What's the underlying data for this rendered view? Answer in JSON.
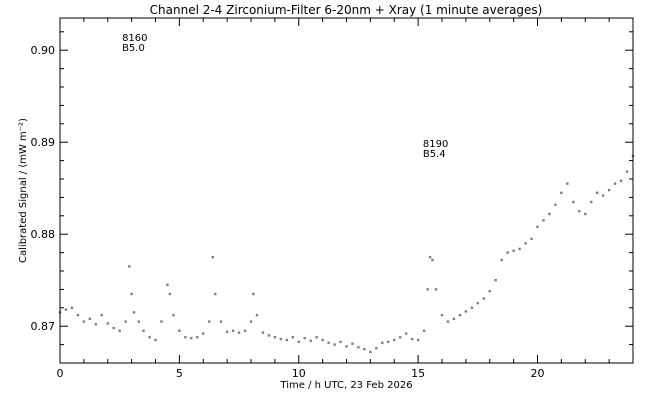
{
  "chart_data": {
    "type": "scatter",
    "title": "Channel 2-4   Zirconium-Filter   6-20nm + Xray   (1 minute averages)",
    "xlabel": "Time / h UTC, 23 Feb 2026",
    "ylabel": "Calibrated Signal / (mW m⁻²)",
    "xlim": [
      0,
      24
    ],
    "ylim": [
      0.866,
      0.9035
    ],
    "x_ticks": [
      0,
      5,
      10,
      15,
      20
    ],
    "x_tick_labels": [
      "0",
      "5",
      "10",
      "15",
      "20"
    ],
    "y_ticks": [
      0.87,
      0.88,
      0.89,
      0.9
    ],
    "y_tick_labels": [
      "0.87",
      "0.88",
      "0.89",
      "0.90"
    ],
    "point_color": "#7f7f7f",
    "annotations": [
      {
        "lines": [
          "8160",
          "B5.0"
        ],
        "x": 2.6,
        "y": 0.901
      },
      {
        "lines": [
          "8190",
          "B5.4"
        ],
        "x": 15.2,
        "y": 0.8895
      }
    ],
    "series": [
      {
        "x": [
          0.0,
          0.25,
          0.5,
          0.75,
          1.0,
          1.25,
          1.5,
          1.75,
          2.0,
          2.25,
          2.5,
          2.75,
          2.9,
          3.0,
          3.1,
          3.3,
          3.5,
          3.75,
          4.0,
          4.25,
          4.5,
          4.6,
          4.75,
          5.0,
          5.25,
          5.5,
          5.75,
          6.0,
          6.25,
          6.4,
          6.5,
          6.75,
          7.0,
          7.25,
          7.5,
          7.75,
          8.0,
          8.1,
          8.25,
          8.5,
          8.75,
          9.0,
          9.25,
          9.5,
          9.75,
          10.0,
          10.25,
          10.5,
          10.75,
          11.0,
          11.25,
          11.5,
          11.75,
          12.0,
          12.25,
          12.5,
          12.75,
          13.0,
          13.25,
          13.5,
          13.75,
          14.0,
          14.25,
          14.5,
          14.75,
          15.0,
          15.25,
          15.4,
          15.5,
          15.6,
          15.75,
          16.0,
          16.25,
          16.5,
          16.75,
          17.0,
          17.25,
          17.5,
          17.75,
          18.0,
          18.25,
          18.5,
          18.75,
          19.0,
          19.25,
          19.5,
          19.75,
          20.0,
          20.25,
          20.5,
          20.75,
          21.0,
          21.25,
          21.5,
          21.75,
          22.0,
          22.25,
          22.5,
          22.75,
          23.0,
          23.25,
          23.5,
          23.75,
          24.0
        ],
        "y": [
          0.8715,
          0.8718,
          0.872,
          0.8712,
          0.8705,
          0.8708,
          0.8702,
          0.8712,
          0.8703,
          0.8698,
          0.8695,
          0.8705,
          0.8765,
          0.8735,
          0.8715,
          0.8705,
          0.8695,
          0.8688,
          0.8685,
          0.8705,
          0.8745,
          0.8735,
          0.8712,
          0.8695,
          0.8688,
          0.8687,
          0.8688,
          0.8692,
          0.8705,
          0.8775,
          0.8735,
          0.8705,
          0.8694,
          0.8695,
          0.8693,
          0.8695,
          0.8705,
          0.8735,
          0.8712,
          0.8693,
          0.869,
          0.8688,
          0.8686,
          0.8685,
          0.8688,
          0.8683,
          0.8687,
          0.8684,
          0.8688,
          0.8685,
          0.8682,
          0.868,
          0.8683,
          0.8678,
          0.8681,
          0.8677,
          0.8675,
          0.8672,
          0.8676,
          0.8682,
          0.8683,
          0.8685,
          0.8688,
          0.8692,
          0.8686,
          0.8685,
          0.8695,
          0.874,
          0.8775,
          0.8772,
          0.874,
          0.8712,
          0.8705,
          0.8708,
          0.8712,
          0.8716,
          0.872,
          0.8725,
          0.873,
          0.8738,
          0.875,
          0.8772,
          0.878,
          0.8782,
          0.8784,
          0.879,
          0.8795,
          0.8808,
          0.8815,
          0.8822,
          0.8832,
          0.8845,
          0.8855,
          0.8835,
          0.8825,
          0.8822,
          0.8835,
          0.8845,
          0.8842,
          0.8848,
          0.8855,
          0.8858,
          0.8868,
          0.8885
        ]
      }
    ]
  }
}
